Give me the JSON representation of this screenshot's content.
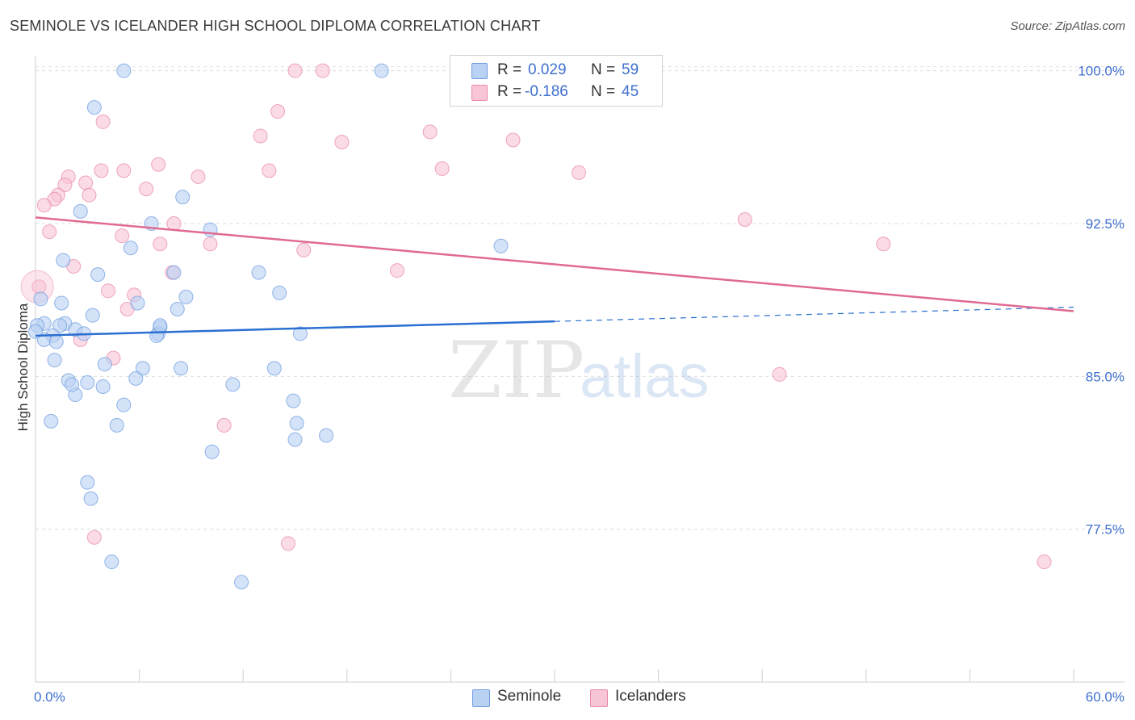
{
  "title": "SEMINOLE VS ICELANDER HIGH SCHOOL DIPLOMA CORRELATION CHART",
  "source": "Source: ZipAtlas.com",
  "watermark": {
    "zip": "ZIP",
    "atlas": "atlas"
  },
  "legend": {
    "rows": [
      {
        "r_label": "R =",
        "r_value": "0.029",
        "n_label": "N =",
        "n_value": "59"
      },
      {
        "r_label": "R =",
        "r_value": "-0.186",
        "n_label": "N =",
        "n_value": "45"
      }
    ]
  },
  "bottom_legend": {
    "series1": "Seminole",
    "series2": "Icelanders"
  },
  "chart_data": {
    "type": "scatter",
    "title": "SEMINOLE VS ICELANDER HIGH SCHOOL DIPLOMA CORRELATION CHART",
    "xlabel": "",
    "ylabel": "High School Diploma",
    "xlim": [
      0,
      60
    ],
    "ylim": [
      70,
      100.7
    ],
    "x_tick_labels": [
      "0.0%",
      "60.0%"
    ],
    "y_ticks": [
      77.5,
      85.0,
      92.5,
      100.0
    ],
    "y_tick_labels": [
      "77.5%",
      "85.0%",
      "92.5%",
      "100.0%"
    ],
    "colors": {
      "seminole": "#6f9de0",
      "seminole_fill": "#b9d1f3",
      "icelanders": "#e98aaa",
      "icelanders_fill": "#f8c5d6",
      "seminole_line": "#2a6fd1",
      "icelanders_line": "#e06a93",
      "axis_text": "#3f6fce"
    },
    "series": [
      {
        "name": "Seminole",
        "R": 0.029,
        "N": 59,
        "trend": {
          "x0": 0,
          "y0": 87.0,
          "x1": 30,
          "y1": 87.7,
          "dashed_to_x": 60,
          "dashed_y1": 88.4
        },
        "points": [
          [
            5.1,
            100.0
          ],
          [
            20.0,
            100.0
          ],
          [
            3.4,
            98.2
          ],
          [
            6.7,
            92.5
          ],
          [
            8.5,
            93.8
          ],
          [
            2.6,
            93.1
          ],
          [
            0.3,
            88.8
          ],
          [
            1.6,
            90.7
          ],
          [
            3.6,
            90.0
          ],
          [
            5.5,
            91.3
          ],
          [
            1.5,
            88.6
          ],
          [
            3.3,
            88.0
          ],
          [
            0.5,
            87.6
          ],
          [
            1.7,
            87.6
          ],
          [
            1.4,
            87.5
          ],
          [
            2.3,
            87.3
          ],
          [
            2.8,
            87.1
          ],
          [
            1.0,
            87.0
          ],
          [
            0.5,
            86.8
          ],
          [
            1.2,
            86.7
          ],
          [
            7.2,
            87.4
          ],
          [
            7.1,
            87.1
          ],
          [
            7.0,
            87.0
          ],
          [
            8.2,
            88.3
          ],
          [
            8.7,
            88.9
          ],
          [
            5.9,
            88.6
          ],
          [
            1.1,
            85.8
          ],
          [
            4.0,
            85.6
          ],
          [
            3.0,
            84.7
          ],
          [
            1.9,
            84.8
          ],
          [
            3.9,
            84.5
          ],
          [
            2.3,
            84.1
          ],
          [
            6.2,
            85.4
          ],
          [
            8.4,
            85.4
          ],
          [
            11.4,
            84.6
          ],
          [
            5.1,
            83.6
          ],
          [
            0.9,
            82.8
          ],
          [
            4.7,
            82.6
          ],
          [
            13.8,
            85.4
          ],
          [
            15.3,
            87.1
          ],
          [
            10.1,
            92.2
          ],
          [
            14.1,
            89.1
          ],
          [
            12.9,
            90.1
          ],
          [
            8.0,
            90.1
          ],
          [
            14.9,
            83.8
          ],
          [
            15.1,
            82.7
          ],
          [
            15.0,
            81.9
          ],
          [
            16.8,
            82.1
          ],
          [
            10.2,
            81.3
          ],
          [
            3.0,
            79.8
          ],
          [
            3.2,
            79.0
          ],
          [
            4.4,
            75.9
          ],
          [
            11.9,
            74.9
          ],
          [
            26.9,
            91.4
          ],
          [
            0.1,
            87.5
          ],
          [
            0.0,
            87.2
          ],
          [
            2.1,
            84.6
          ],
          [
            5.8,
            84.9
          ],
          [
            7.2,
            87.5
          ]
        ]
      },
      {
        "name": "Icelanders",
        "R": -0.186,
        "N": 45,
        "trend": {
          "x0": 0,
          "y0": 92.8,
          "x1": 60,
          "y1": 88.2
        },
        "points": [
          [
            15.0,
            100.0
          ],
          [
            16.6,
            100.0
          ],
          [
            14.0,
            98.0
          ],
          [
            13.0,
            96.8
          ],
          [
            17.7,
            96.5
          ],
          [
            22.8,
            97.0
          ],
          [
            27.6,
            96.6
          ],
          [
            3.9,
            97.5
          ],
          [
            5.1,
            95.1
          ],
          [
            3.8,
            95.1
          ],
          [
            7.1,
            95.4
          ],
          [
            9.4,
            94.8
          ],
          [
            13.5,
            95.1
          ],
          [
            23.5,
            95.2
          ],
          [
            31.4,
            95.0
          ],
          [
            1.9,
            94.8
          ],
          [
            1.7,
            94.4
          ],
          [
            2.9,
            94.5
          ],
          [
            3.1,
            93.9
          ],
          [
            1.3,
            93.9
          ],
          [
            1.1,
            93.7
          ],
          [
            0.5,
            93.4
          ],
          [
            6.4,
            94.2
          ],
          [
            0.8,
            92.1
          ],
          [
            5.0,
            91.9
          ],
          [
            8.0,
            92.5
          ],
          [
            7.2,
            91.5
          ],
          [
            10.1,
            91.5
          ],
          [
            15.5,
            91.2
          ],
          [
            41.0,
            92.7
          ],
          [
            49.0,
            91.5
          ],
          [
            2.2,
            90.4
          ],
          [
            7.9,
            90.1
          ],
          [
            20.9,
            90.2
          ],
          [
            4.2,
            89.2
          ],
          [
            5.7,
            89.0
          ],
          [
            5.3,
            88.3
          ],
          [
            2.6,
            86.8
          ],
          [
            4.5,
            85.9
          ],
          [
            0.2,
            89.4
          ],
          [
            43.0,
            85.1
          ],
          [
            10.9,
            82.6
          ],
          [
            3.4,
            77.1
          ],
          [
            14.6,
            76.8
          ],
          [
            58.3,
            75.9
          ]
        ]
      }
    ]
  }
}
